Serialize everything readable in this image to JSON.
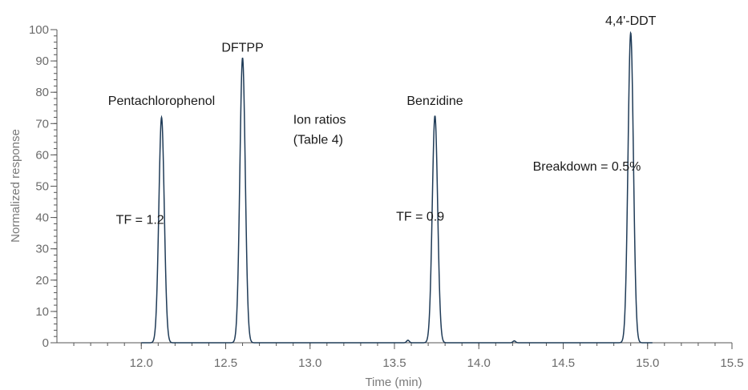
{
  "chart_data": {
    "type": "line",
    "title": "",
    "xlabel": "Time (min)",
    "ylabel": "Normalized response",
    "xlim": [
      11.5,
      15.5
    ],
    "ylim": [
      0,
      100
    ],
    "x_ticks": [
      12.0,
      12.5,
      13.0,
      13.5,
      14.0,
      14.5,
      15.0,
      15.5
    ],
    "x_tick_labels": [
      "12.0",
      "12.5",
      "13.0",
      "13.5",
      "14.0",
      "14.5",
      "15.0",
      "15.5"
    ],
    "y_ticks": [
      0,
      10,
      20,
      30,
      40,
      50,
      60,
      70,
      80,
      90,
      100
    ],
    "y_tick_labels": [
      "0",
      "10",
      "20",
      "30",
      "40",
      "50",
      "60",
      "70",
      "80",
      "90",
      "100"
    ],
    "x_minor_step": 0.1,
    "y_minor_step": 2,
    "grid": false,
    "legend": "none",
    "line_color": "#1f3b57",
    "peaks": [
      {
        "name": "Pentachlorophenol",
        "rt": 12.12,
        "height": 72
      },
      {
        "name": "DFTPP",
        "rt": 12.6,
        "height": 91
      },
      {
        "name": "Benzidine",
        "rt": 13.74,
        "height": 72.5
      },
      {
        "name": "4,4'-DDT",
        "rt": 14.9,
        "height": 99
      }
    ],
    "minor_peaks": [
      {
        "rt": 13.58,
        "height": 0.8
      },
      {
        "rt": 14.21,
        "height": 0.6
      }
    ],
    "annotations": [
      {
        "id": "pcp-label",
        "text": "Pentachlorophenol",
        "x": 12.12,
        "y": 76
      },
      {
        "id": "dftpp-label",
        "text": "DFTPP",
        "x": 12.6,
        "y": 93
      },
      {
        "id": "ion-ratios-line1",
        "text": "Ion ratios",
        "x": 12.9,
        "y": 70
      },
      {
        "id": "ion-ratios-line2",
        "text": "(Table 4)",
        "x": 12.9,
        "y": 63.5
      },
      {
        "id": "benzidine-label",
        "text": "Benzidine",
        "x": 13.74,
        "y": 76
      },
      {
        "id": "breakdown-label",
        "text": "Breakdown = 0.5%",
        "x": 14.32,
        "y": 55
      },
      {
        "id": "ddt-label",
        "text": "4,4'-DDT",
        "x": 14.9,
        "y": 101.5
      },
      {
        "id": "tf-pcp-label",
        "text": "TF = 1.2",
        "x": 11.85,
        "y": 38
      },
      {
        "id": "tf-benzidine-label",
        "text": "TF = 0.9",
        "x": 13.51,
        "y": 39
      }
    ]
  }
}
